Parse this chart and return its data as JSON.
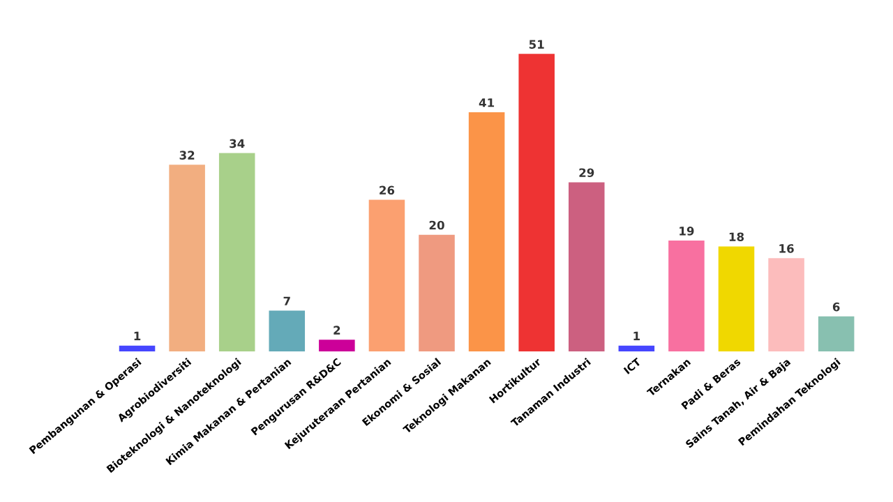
{
  "chart_data": {
    "type": "bar",
    "categories": [
      "Pembangunan & Operasi",
      "Agrobiodiversiti",
      "Bioteknologi & Nanoteknologi",
      "Kimia Makanan & Pertanian",
      "Pengurusan R&D&C",
      "Kejuruteraan Pertanian",
      "Ekonomi & Sosial",
      "Teknologi Makanan",
      "Hortikultur",
      "Tanaman Industri",
      "ICT",
      "Ternakan",
      "Padi & Beras",
      "Sains Tanah, Air & Baja",
      "Pemindahan Teknologi"
    ],
    "values": [
      1,
      32,
      34,
      7,
      2,
      26,
      20,
      41,
      51,
      29,
      1,
      19,
      18,
      16,
      6
    ],
    "colors": [
      "#4646ff",
      "#f2ae80",
      "#a8d08a",
      "#64aab8",
      "#cc0099",
      "#fba070",
      "#ef9a80",
      "#fb9448",
      "#ee3333",
      "#cc6080",
      "#4646ff",
      "#f870a0",
      "#f0d800",
      "#fcbcbc",
      "#88c0b0"
    ],
    "data_labels": true
  }
}
